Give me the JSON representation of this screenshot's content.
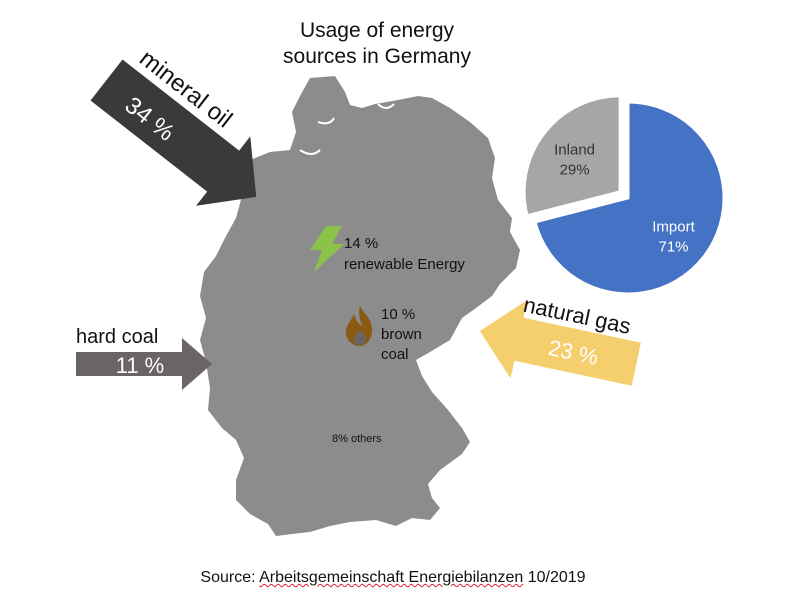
{
  "title_line1": "Usage of energy",
  "title_line2": "sources in Germany",
  "source": {
    "prefix": "Source: ",
    "organization": "Arbeitsgemeinschaft Energiebilanzen",
    "date": "10/2019"
  },
  "sources": {
    "mineral_oil": {
      "name": "mineral oil",
      "share": "34 %",
      "color": "#3a3a3a"
    },
    "hard_coal": {
      "name": "hard coal",
      "share": "11 %",
      "color": "#6b6466"
    },
    "natural_gas": {
      "name": "natural gas",
      "share": "23 %",
      "color": "#f5cf6e"
    },
    "renewable": {
      "share": "14 %",
      "name": "renewable Energy",
      "icon": "lightning-bolt-icon",
      "color": "#8bc34a"
    },
    "brown_coal": {
      "share": "10 %",
      "name_line1": "brown",
      "name_line2": "coal",
      "icon": "flame-icon",
      "color": "#8a5a12"
    },
    "others": {
      "label": "8% others"
    }
  },
  "map": {
    "country": "Germany",
    "fill": "#8c8c8c"
  },
  "chart_data": {
    "type": "pie",
    "slices": [
      {
        "label": "Inland",
        "value": 29,
        "value_label": "29%",
        "color": "#a6a6a6",
        "exploded": true
      },
      {
        "label": "Import",
        "value": 71,
        "value_label": "71%",
        "color": "#4472c4",
        "exploded": false
      }
    ]
  }
}
